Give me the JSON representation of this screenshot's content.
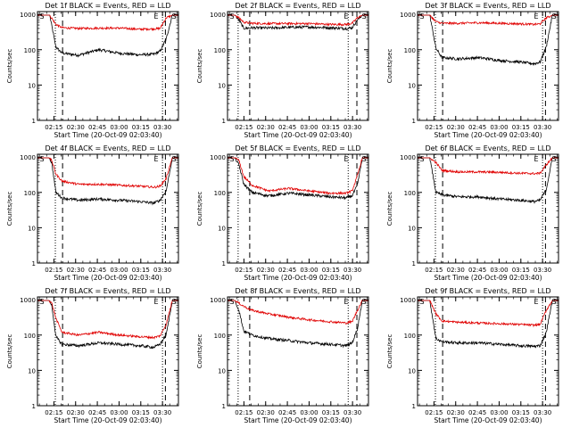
{
  "chart_data": {
    "type": "line",
    "yscale": "log",
    "ylim": [
      1,
      1200
    ],
    "yticks": [
      1,
      10,
      100,
      1000
    ],
    "xticks": [
      "02:15",
      "02:30",
      "02:45",
      "03:00",
      "03:15",
      "03:30"
    ],
    "xlabel": "Start Time (20-Oct-09 02:03:40)",
    "ylabel": "Counts/sec",
    "series_colors": {
      "events": "#000000",
      "lld": "#e00000"
    },
    "panels": [
      {
        "title": "Det 1f BLACK = Events, RED = LLD",
        "markers": [
          "S",
          "E",
          "S"
        ],
        "dotted": [
          "02:16",
          "03:30"
        ],
        "dashed": [
          "02:21",
          "03:32"
        ],
        "events_profile": [
          [
            0,
            950
          ],
          [
            30,
            950
          ],
          [
            45,
            120
          ],
          [
            60,
            80
          ],
          [
            100,
            70
          ],
          [
            150,
            100
          ],
          [
            200,
            80
          ],
          [
            250,
            72
          ],
          [
            285,
            75
          ],
          [
            300,
            90
          ],
          [
            315,
            200
          ],
          [
            330,
            950
          ],
          [
            345,
            950
          ]
        ],
        "lld_profile": [
          [
            0,
            950
          ],
          [
            30,
            950
          ],
          [
            45,
            520
          ],
          [
            60,
            420
          ],
          [
            100,
            400
          ],
          [
            150,
            410
          ],
          [
            200,
            410
          ],
          [
            250,
            380
          ],
          [
            285,
            390
          ],
          [
            300,
            400
          ],
          [
            315,
            800
          ],
          [
            330,
            950
          ],
          [
            345,
            950
          ]
        ]
      },
      {
        "title": "Det 2f BLACK = Events, RED = LLD",
        "markers": [
          "S",
          "E",
          "S"
        ],
        "dotted": [
          "02:11",
          "03:27"
        ],
        "dashed": [
          "02:19",
          "03:33"
        ],
        "events_profile": [
          [
            0,
            950
          ],
          [
            18,
            950
          ],
          [
            28,
            700
          ],
          [
            40,
            400
          ],
          [
            60,
            420
          ],
          [
            100,
            410
          ],
          [
            150,
            430
          ],
          [
            200,
            440
          ],
          [
            250,
            420
          ],
          [
            290,
            400
          ],
          [
            305,
            420
          ],
          [
            318,
            700
          ],
          [
            330,
            950
          ],
          [
            345,
            950
          ]
        ],
        "lld_profile": [
          [
            0,
            950
          ],
          [
            18,
            950
          ],
          [
            28,
            800
          ],
          [
            40,
            600
          ],
          [
            60,
            560
          ],
          [
            100,
            550
          ],
          [
            150,
            550
          ],
          [
            200,
            550
          ],
          [
            250,
            520
          ],
          [
            290,
            520
          ],
          [
            305,
            560
          ],
          [
            318,
            800
          ],
          [
            330,
            950
          ],
          [
            345,
            950
          ]
        ]
      },
      {
        "title": "Det 3f BLACK = Events, RED = LLD",
        "markers": [
          "S",
          "E",
          "S"
        ],
        "dotted": [
          "02:16",
          "03:30"
        ],
        "dashed": [
          "02:21",
          "03:32"
        ],
        "events_profile": [
          [
            0,
            950
          ],
          [
            30,
            950
          ],
          [
            45,
            110
          ],
          [
            60,
            60
          ],
          [
            100,
            55
          ],
          [
            150,
            60
          ],
          [
            200,
            50
          ],
          [
            250,
            45
          ],
          [
            285,
            40
          ],
          [
            300,
            45
          ],
          [
            315,
            120
          ],
          [
            330,
            950
          ],
          [
            345,
            950
          ]
        ],
        "lld_profile": [
          [
            0,
            950
          ],
          [
            30,
            950
          ],
          [
            45,
            620
          ],
          [
            60,
            560
          ],
          [
            100,
            560
          ],
          [
            150,
            580
          ],
          [
            200,
            560
          ],
          [
            250,
            540
          ],
          [
            285,
            520
          ],
          [
            300,
            540
          ],
          [
            315,
            800
          ],
          [
            330,
            950
          ],
          [
            345,
            950
          ]
        ]
      },
      {
        "title": "Det 4f BLACK = Events, RED = LLD",
        "markers": [
          "S",
          "E",
          "S"
        ],
        "dotted": [
          "02:16",
          "03:30"
        ],
        "dashed": [
          "02:21",
          "03:32"
        ],
        "events_profile": [
          [
            0,
            950
          ],
          [
            28,
            950
          ],
          [
            35,
            700
          ],
          [
            45,
            100
          ],
          [
            60,
            70
          ],
          [
            100,
            60
          ],
          [
            150,
            65
          ],
          [
            200,
            60
          ],
          [
            250,
            55
          ],
          [
            285,
            50
          ],
          [
            300,
            60
          ],
          [
            315,
            110
          ],
          [
            330,
            950
          ],
          [
            345,
            950
          ]
        ],
        "lld_profile": [
          [
            0,
            950
          ],
          [
            28,
            950
          ],
          [
            35,
            800
          ],
          [
            45,
            330
          ],
          [
            60,
            210
          ],
          [
            100,
            170
          ],
          [
            150,
            170
          ],
          [
            200,
            160
          ],
          [
            250,
            150
          ],
          [
            285,
            140
          ],
          [
            300,
            150
          ],
          [
            315,
            250
          ],
          [
            330,
            950
          ],
          [
            345,
            950
          ]
        ]
      },
      {
        "title": "Det 5f BLACK = Events, RED = LLD",
        "markers": [
          "S",
          "E",
          "S"
        ],
        "dotted": [
          "02:11",
          "03:27"
        ],
        "dashed": [
          "02:19",
          "03:33"
        ],
        "events_profile": [
          [
            0,
            950
          ],
          [
            18,
            950
          ],
          [
            28,
            600
          ],
          [
            40,
            170
          ],
          [
            60,
            100
          ],
          [
            100,
            80
          ],
          [
            150,
            95
          ],
          [
            200,
            85
          ],
          [
            250,
            75
          ],
          [
            290,
            70
          ],
          [
            305,
            80
          ],
          [
            318,
            160
          ],
          [
            330,
            950
          ],
          [
            345,
            950
          ]
        ],
        "lld_profile": [
          [
            0,
            950
          ],
          [
            18,
            950
          ],
          [
            28,
            800
          ],
          [
            40,
            280
          ],
          [
            60,
            160
          ],
          [
            100,
            110
          ],
          [
            150,
            130
          ],
          [
            200,
            110
          ],
          [
            250,
            95
          ],
          [
            290,
            95
          ],
          [
            305,
            110
          ],
          [
            318,
            300
          ],
          [
            330,
            950
          ],
          [
            345,
            950
          ]
        ]
      },
      {
        "title": "Det 6f BLACK = Events, RED = LLD",
        "markers": [
          "S",
          "E",
          "S"
        ],
        "dotted": [
          "02:16",
          "03:30"
        ],
        "dashed": [
          "02:21",
          "03:32"
        ],
        "events_profile": [
          [
            0,
            950
          ],
          [
            30,
            950
          ],
          [
            45,
            100
          ],
          [
            60,
            85
          ],
          [
            100,
            75
          ],
          [
            150,
            75
          ],
          [
            200,
            65
          ],
          [
            250,
            60
          ],
          [
            285,
            55
          ],
          [
            300,
            60
          ],
          [
            315,
            120
          ],
          [
            330,
            950
          ],
          [
            345,
            950
          ]
        ],
        "lld_profile": [
          [
            0,
            950
          ],
          [
            30,
            950
          ],
          [
            45,
            700
          ],
          [
            60,
            420
          ],
          [
            100,
            380
          ],
          [
            150,
            380
          ],
          [
            200,
            370
          ],
          [
            250,
            350
          ],
          [
            285,
            340
          ],
          [
            300,
            350
          ],
          [
            315,
            600
          ],
          [
            330,
            950
          ],
          [
            345,
            950
          ]
        ]
      },
      {
        "title": "Det 7f BLACK = Events, RED = LLD",
        "markers": [
          "S",
          "E",
          "S"
        ],
        "dotted": [
          "02:16",
          "03:30"
        ],
        "dashed": [
          "02:21",
          "03:32"
        ],
        "events_profile": [
          [
            0,
            950
          ],
          [
            28,
            950
          ],
          [
            35,
            700
          ],
          [
            45,
            90
          ],
          [
            60,
            55
          ],
          [
            100,
            50
          ],
          [
            150,
            60
          ],
          [
            200,
            55
          ],
          [
            250,
            50
          ],
          [
            285,
            45
          ],
          [
            300,
            55
          ],
          [
            315,
            100
          ],
          [
            330,
            950
          ],
          [
            345,
            950
          ]
        ],
        "lld_profile": [
          [
            0,
            950
          ],
          [
            28,
            950
          ],
          [
            35,
            800
          ],
          [
            45,
            300
          ],
          [
            60,
            120
          ],
          [
            100,
            100
          ],
          [
            150,
            120
          ],
          [
            200,
            100
          ],
          [
            250,
            90
          ],
          [
            285,
            85
          ],
          [
            300,
            95
          ],
          [
            315,
            200
          ],
          [
            330,
            950
          ],
          [
            345,
            950
          ]
        ]
      },
      {
        "title": "Det 8f BLACK = Events, RED = LLD",
        "markers": [
          "S",
          "E",
          "S"
        ],
        "dotted": [
          "02:11",
          "03:27"
        ],
        "dashed": [
          "02:19",
          "03:33"
        ],
        "events_profile": [
          [
            0,
            950
          ],
          [
            18,
            950
          ],
          [
            28,
            500
          ],
          [
            40,
            130
          ],
          [
            60,
            100
          ],
          [
            100,
            80
          ],
          [
            150,
            70
          ],
          [
            200,
            60
          ],
          [
            250,
            55
          ],
          [
            290,
            50
          ],
          [
            305,
            60
          ],
          [
            318,
            150
          ],
          [
            330,
            950
          ],
          [
            345,
            950
          ]
        ],
        "lld_profile": [
          [
            0,
            950
          ],
          [
            18,
            950
          ],
          [
            28,
            800
          ],
          [
            40,
            650
          ],
          [
            60,
            500
          ],
          [
            100,
            400
          ],
          [
            150,
            320
          ],
          [
            200,
            270
          ],
          [
            250,
            240
          ],
          [
            290,
            220
          ],
          [
            305,
            240
          ],
          [
            318,
            500
          ],
          [
            330,
            950
          ],
          [
            345,
            950
          ]
        ]
      },
      {
        "title": "Det 9f BLACK = Events, RED = LLD",
        "markers": [
          "S",
          "E",
          "S"
        ],
        "dotted": [
          "02:16",
          "03:30"
        ],
        "dashed": [
          "02:21",
          "03:32"
        ],
        "events_profile": [
          [
            0,
            950
          ],
          [
            30,
            950
          ],
          [
            45,
            80
          ],
          [
            60,
            65
          ],
          [
            100,
            60
          ],
          [
            150,
            60
          ],
          [
            200,
            55
          ],
          [
            250,
            50
          ],
          [
            285,
            48
          ],
          [
            300,
            50
          ],
          [
            315,
            120
          ],
          [
            330,
            950
          ],
          [
            345,
            950
          ]
        ],
        "lld_profile": [
          [
            0,
            950
          ],
          [
            30,
            950
          ],
          [
            45,
            400
          ],
          [
            60,
            250
          ],
          [
            100,
            230
          ],
          [
            150,
            220
          ],
          [
            200,
            210
          ],
          [
            250,
            200
          ],
          [
            285,
            190
          ],
          [
            300,
            200
          ],
          [
            315,
            500
          ],
          [
            330,
            950
          ],
          [
            345,
            950
          ]
        ]
      }
    ]
  }
}
